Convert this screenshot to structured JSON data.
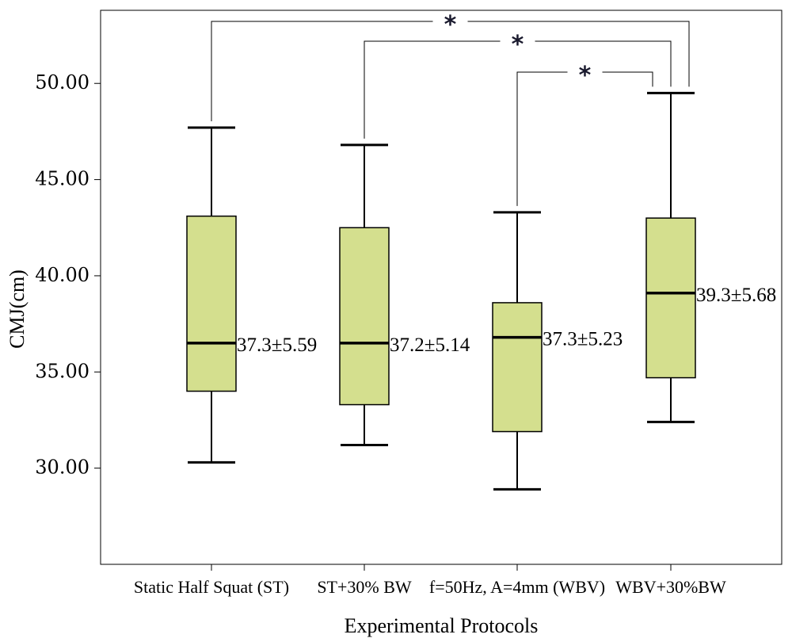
{
  "chart_data": {
    "type": "boxplot",
    "xlabel": "Experimental Protocols",
    "ylabel": "CMJ(cm)",
    "ylim": [
      25.0,
      53.8
    ],
    "yticks": [
      "30.00",
      "35.00",
      "40.00",
      "45.00",
      "50.00"
    ],
    "ytick_values": [
      30,
      35,
      40,
      45,
      50
    ],
    "box_color": "#d4df8e",
    "categories": [
      "Static Half Squat (ST)",
      "ST+30% BW",
      "f=50Hz, A=4mm (WBV)",
      "WBV+30%BW"
    ],
    "boxes": [
      {
        "min": 30.3,
        "q1": 34.0,
        "median": 36.5,
        "q3": 43.1,
        "max": 47.7,
        "label": "37.3±5.59"
      },
      {
        "min": 31.2,
        "q1": 33.3,
        "median": 36.5,
        "q3": 42.5,
        "max": 46.8,
        "label": "37.2±5.14"
      },
      {
        "min": 28.9,
        "q1": 31.9,
        "median": 36.8,
        "q3": 38.6,
        "max": 43.3,
        "label": "37.3±5.23"
      },
      {
        "min": 32.4,
        "q1": 34.7,
        "median": 39.1,
        "q3": 43.0,
        "max": 49.5,
        "label": "39.3±5.68"
      }
    ],
    "significance": [
      {
        "from": 0,
        "to": 3,
        "label": "*"
      },
      {
        "from": 1,
        "to": 3,
        "label": "*"
      },
      {
        "from": 2,
        "to": 3,
        "label": "*"
      }
    ]
  }
}
